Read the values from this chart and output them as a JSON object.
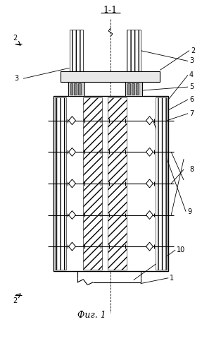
{
  "bg_color": "#ffffff",
  "line_color": "#000000",
  "fig_width": 3.14,
  "fig_height": 5.0,
  "dpi": 100
}
